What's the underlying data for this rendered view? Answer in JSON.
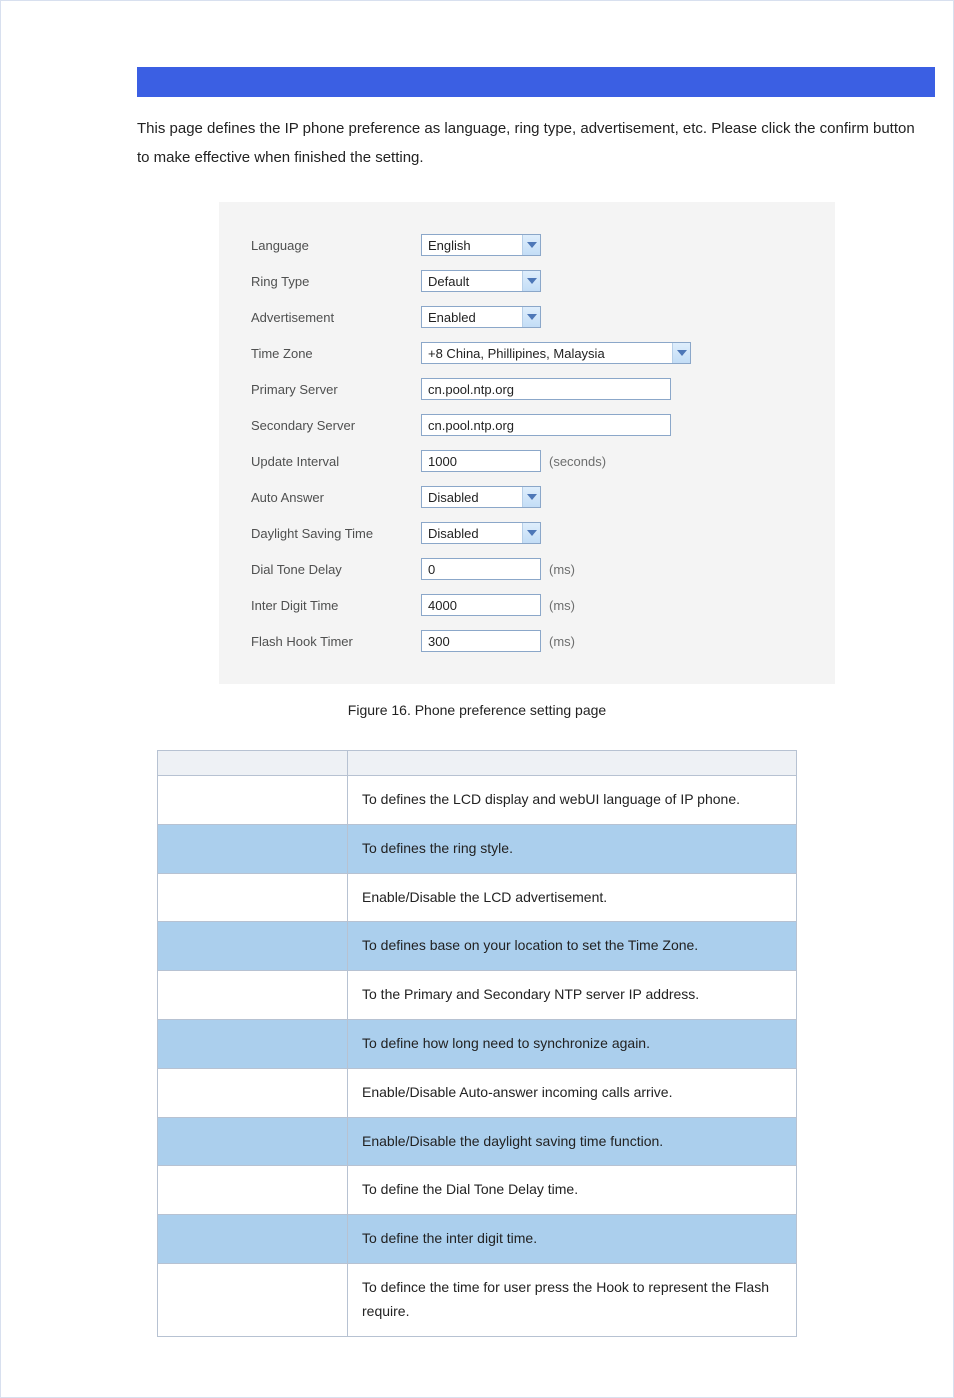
{
  "intro_text": "This page defines the IP phone preference as language, ring type, advertisement, etc. Please click the confirm button to make effective when finished the setting.",
  "form": {
    "rows": [
      {
        "label": "Language",
        "type": "select",
        "value": "English",
        "width": "narrow"
      },
      {
        "label": "Ring Type",
        "type": "select",
        "value": "Default",
        "width": "narrow"
      },
      {
        "label": "Advertisement",
        "type": "select",
        "value": "Enabled",
        "width": "narrow"
      },
      {
        "label": "Time Zone",
        "type": "select",
        "value": "+8  China, Phillipines, Malaysia",
        "width": "wide"
      },
      {
        "label": "Primary Server",
        "type": "text",
        "value": "cn.pool.ntp.org",
        "width": "wide"
      },
      {
        "label": "Secondary Server",
        "type": "text",
        "value": "cn.pool.ntp.org",
        "width": "wide"
      },
      {
        "label": "Update Interval",
        "type": "text",
        "value": "1000",
        "width": "narrow",
        "unit": "(seconds)"
      },
      {
        "label": "Auto Answer",
        "type": "select",
        "value": "Disabled",
        "width": "narrow"
      },
      {
        "label": "Daylight Saving Time",
        "type": "select",
        "value": "Disabled",
        "width": "narrow"
      },
      {
        "label": "Dial Tone Delay",
        "type": "text",
        "value": "0",
        "width": "narrow",
        "unit": "(ms)"
      },
      {
        "label": "Inter Digit Time",
        "type": "text",
        "value": "4000",
        "width": "narrow",
        "unit": "(ms)"
      },
      {
        "label": "Flash Hook Timer",
        "type": "text",
        "value": "300",
        "width": "narrow",
        "unit": "(ms)"
      }
    ]
  },
  "caption": "Figure 16. Phone preference setting page",
  "table": {
    "header": {
      "field": "",
      "desc": ""
    },
    "rows": [
      {
        "desc": "To defines the LCD display and webUI language of IP phone."
      },
      {
        "desc": "To defines the ring style."
      },
      {
        "desc": "Enable/Disable the LCD advertisement."
      },
      {
        "desc": "To defines base on your location to set the Time Zone."
      },
      {
        "desc": "To the Primary and Secondary NTP server IP address."
      },
      {
        "desc": "To define how long need to synchronize again."
      },
      {
        "desc": "Enable/Disable Auto-answer incoming calls arrive."
      },
      {
        "desc": "Enable/Disable the daylight saving time function."
      },
      {
        "desc": "To define the Dial Tone Delay time."
      },
      {
        "desc": "To define the inter digit time."
      },
      {
        "desc": "To defince the time for user press the Hook to represent the Flash require."
      }
    ]
  },
  "colors": {
    "bar": "#3b5fe3",
    "panel_bg": "#f4f4f4",
    "alt_row": "#abcfed",
    "table_border": "#b7c2d2",
    "input_border": "#8ba7c9"
  }
}
